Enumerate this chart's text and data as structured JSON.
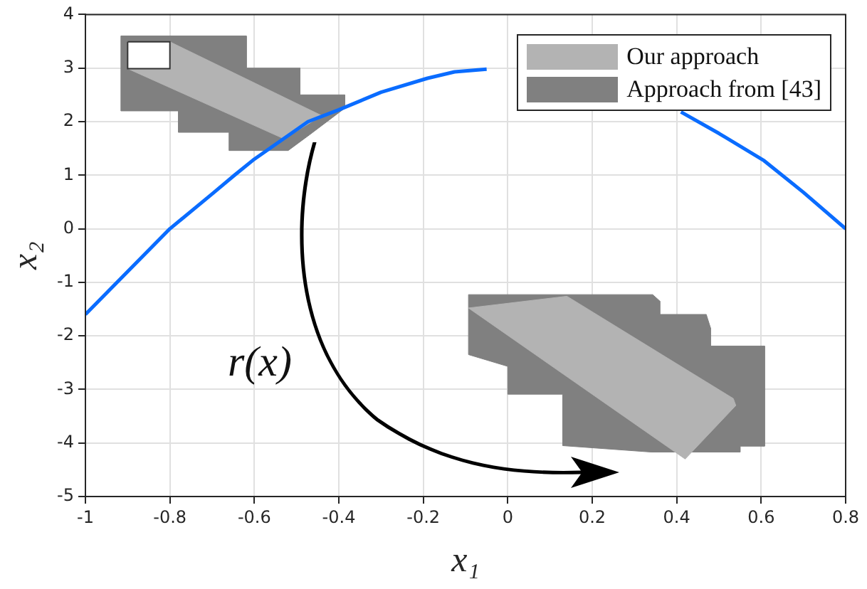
{
  "chart_data": {
    "type": "line",
    "xlabel": "x₁",
    "ylabel": "x₂",
    "xlim": [
      -1,
      0.8
    ],
    "xticks": [
      -1,
      -0.8,
      -0.6,
      -0.4,
      -0.2,
      0,
      0.2,
      0.4,
      0.6,
      0.8
    ],
    "ylim": [
      -5,
      4
    ],
    "yticks": [
      -5,
      -4,
      -3,
      -2,
      -1,
      0,
      1,
      2,
      3,
      4
    ],
    "grid": true,
    "legend": "top right",
    "annotations": [
      "r(x)"
    ],
    "series": [
      {
        "type": "area",
        "name": "Approach from [43]",
        "color": "#808080",
        "x": [
          -0.916,
          -0.619,
          -0.619,
          -0.492,
          -0.492,
          -0.386,
          -0.386,
          -0.47,
          -0.52,
          -0.66,
          -0.66,
          -0.78,
          -0.78,
          -0.916
        ],
        "values": [
          3.6,
          3.6,
          3.0,
          3.0,
          2.5,
          2.5,
          2.25,
          1.75,
          1.46,
          1.46,
          1.8,
          1.8,
          2.2,
          2.2
        ]
      },
      {
        "type": "area",
        "color": "#808080",
        "x": [
          -0.093,
          0.343,
          0.36,
          0.36,
          0.47,
          0.48,
          0.48,
          0.608,
          0.608,
          0.55,
          0.55,
          0.34,
          0.13,
          0.13,
          0,
          0,
          -0.093
        ],
        "values": [
          -1.23,
          -1.23,
          -1.35,
          -1.6,
          -1.6,
          -1.85,
          -2.19,
          -2.19,
          -4.06,
          -4.06,
          -4.17,
          -4.17,
          -4.05,
          -3.09,
          -3.09,
          -2.57,
          -2.35
        ]
      },
      {
        "type": "area",
        "name": "Our approach",
        "color": "#b3b3b3",
        "x": [
          -0.9,
          -0.8,
          -0.44,
          -0.53,
          -0.9
        ],
        "values": [
          3.49,
          3.49,
          2.11,
          1.68,
          2.99
        ]
      },
      {
        "type": "area",
        "color": "#b3b3b3",
        "x": [
          -0.093,
          0.14,
          0.534,
          0.54,
          0.42
        ],
        "values": [
          -1.48,
          -1.26,
          -3.17,
          -3.3,
          -4.3
        ]
      },
      {
        "type": "area",
        "color": "#ffffff",
        "x": [
          -0.9,
          -0.8,
          -0.8,
          -0.9
        ],
        "values": [
          3.49,
          3.49,
          2.99,
          2.99
        ]
      },
      {
        "color": "#0a6cff",
        "x": [
          -1,
          -0.9,
          -0.8,
          -0.7,
          -0.647,
          -0.6,
          -0.5,
          -0.473,
          -0.4,
          -0.3,
          -0.19,
          -0.126,
          -0.05,
          0.15,
          0.41,
          0.5,
          0.607,
          0.7,
          0.8
        ],
        "values": [
          -1.6,
          -0.8,
          0,
          0.65,
          1,
          1.3,
          1.85,
          2,
          2.22,
          2.55,
          2.81,
          2.93,
          2.98,
          null,
          2.18,
          1.78,
          1.27,
          0.68,
          0
        ]
      }
    ]
  }
}
